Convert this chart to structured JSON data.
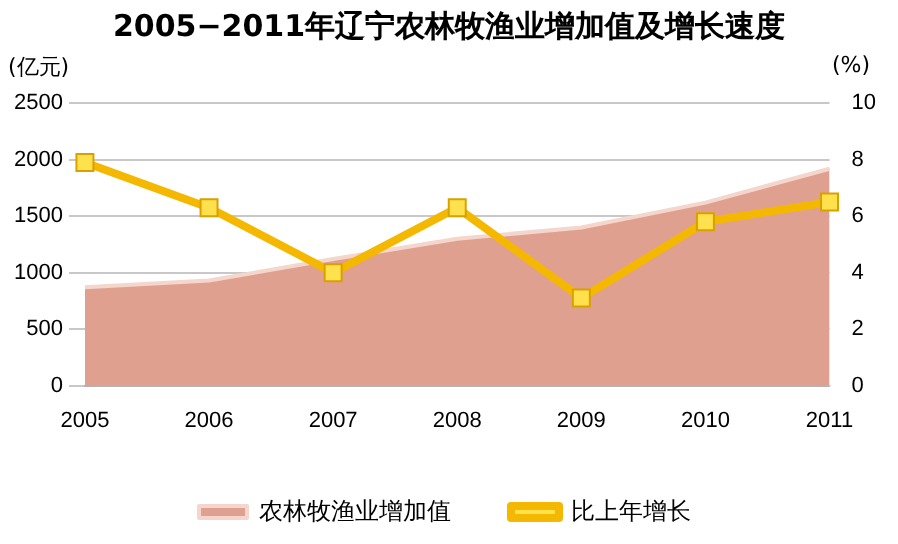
{
  "chart_data": {
    "type": "line",
    "title": "2005−2011年辽宁农林牧渔业增加值及增长速度",
    "ylabel": "(亿元)",
    "y2label": "(%)",
    "categories": [
      "2005",
      "2006",
      "2007",
      "2008",
      "2009",
      "2010",
      "2011"
    ],
    "series": [
      {
        "name": "农林牧渔业增加值",
        "type": "area",
        "color": "#e0a090",
        "values": [
          870,
          930,
          1120,
          1300,
          1400,
          1620,
          1920
        ]
      },
      {
        "name": "比上年增长",
        "axis": "y2",
        "color": "#f5b800",
        "marker": "square",
        "values": [
          7.9,
          6.3,
          4.0,
          6.3,
          3.1,
          5.8,
          6.5
        ]
      }
    ],
    "ylim": [
      0,
      2500
    ],
    "yticks": [
      0,
      500,
      1000,
      1500,
      2000,
      2500
    ],
    "y2lim": [
      0,
      10
    ],
    "y2ticks": [
      0,
      2,
      4,
      6,
      8,
      10
    ],
    "grid": "y",
    "legend": "bottom"
  }
}
